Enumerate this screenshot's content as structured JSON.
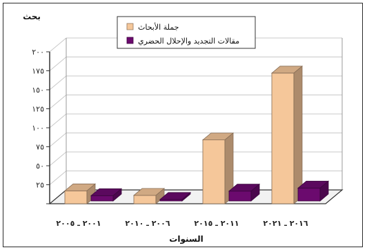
{
  "chart_data": {
    "type": "bar",
    "title": "",
    "ylabel": "بحث",
    "xlabel": "السنوات",
    "ylim": [
      0,
      200
    ],
    "yticks": [
      0,
      25,
      50,
      75,
      100,
      125,
      150,
      175,
      200
    ],
    "ytick_labels": [
      "",
      "٢٥",
      "٥٠",
      "٧٥",
      "١٠٠",
      "١٢٥",
      "١٥٠",
      "١٧٥",
      "٢٠٠"
    ],
    "categories": [
      "٢٠٠١ ـ ٢٠٠٥",
      "٢٠٠٦ ـ ٢٠١٠",
      "٢٠١١ ـ ٢٠١٥",
      "٢٠١٦ ـ ٢٠٢١"
    ],
    "series": [
      {
        "name": "جملة الأبحاث",
        "values": [
          17,
          11,
          84,
          172
        ]
      },
      {
        "name": "مقالات التجديد والإحلال الحضري",
        "values": [
          7,
          2,
          13,
          17
        ]
      }
    ],
    "colors": [
      "#F5C79A",
      "#6B0A6E"
    ],
    "grid": true,
    "legend": "top-center",
    "style": "3d"
  }
}
